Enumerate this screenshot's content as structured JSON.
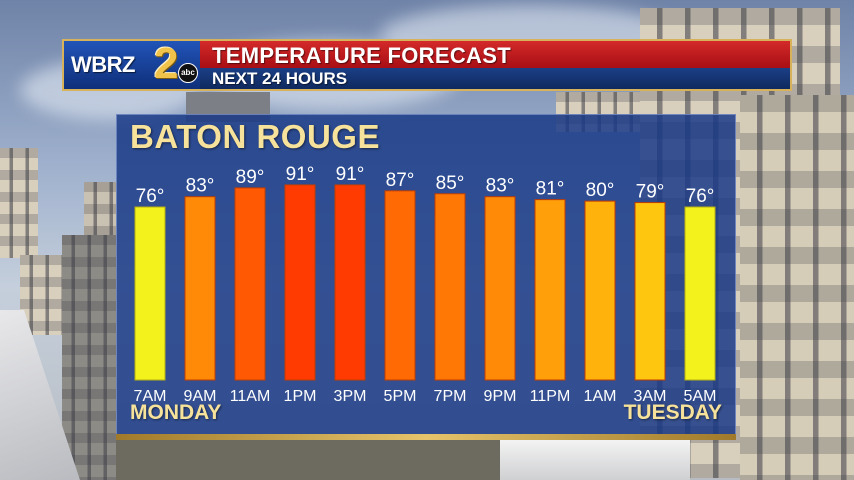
{
  "header": {
    "logo_text": "WBRZ",
    "logo_number": "2",
    "logo_network": "abc",
    "title": "TEMPERATURE FORECAST",
    "subtitle": "NEXT 24 HOURS"
  },
  "chart_data": {
    "type": "bar",
    "title": "BATON ROUGE",
    "categories": [
      "7AM",
      "9AM",
      "11AM",
      "1PM",
      "3PM",
      "5PM",
      "7PM",
      "9PM",
      "11PM",
      "1AM",
      "3AM",
      "5AM"
    ],
    "values": [
      76,
      83,
      89,
      91,
      91,
      87,
      85,
      83,
      81,
      80,
      79,
      76
    ],
    "value_suffix": "°",
    "day_labels": {
      "start": "MONDAY",
      "end": "TUESDAY"
    },
    "colors": {
      "76": "#f3f21c",
      "79": "#ffc60f",
      "80": "#ffb10c",
      "81": "#ffa00a",
      "83": "#ff8a07",
      "85": "#ff7805",
      "87": "#ff6a04",
      "89": "#ff5a03",
      "91": "#ff3b02"
    },
    "bar_edge_colors": {
      "76": "#b5b010",
      "default": "#c23d00"
    },
    "grid": false,
    "legend": "none"
  }
}
